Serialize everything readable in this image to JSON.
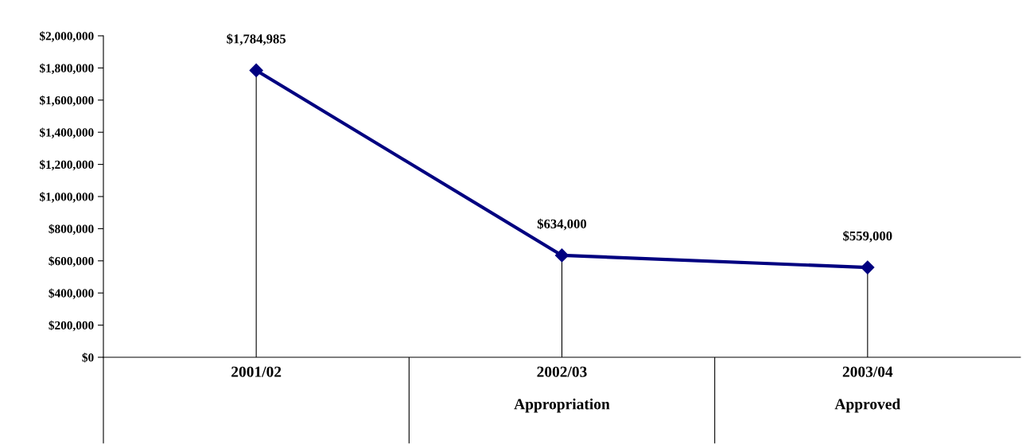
{
  "chart_data": {
    "type": "line",
    "categories": [
      "2001/02",
      "2002/03\n\nAppropriation",
      "2003/04\n\nApproved"
    ],
    "series": [
      {
        "color": "#000080",
        "values": [
          1784985,
          634000,
          559000
        ],
        "value_labels": [
          "$1,784,985",
          "$634,000",
          "$559,000"
        ]
      }
    ],
    "ylim": [
      0,
      2000000
    ],
    "yticks": [
      {
        "value": 0,
        "label": "$0"
      },
      {
        "value": 200000,
        "label": "$200,000"
      },
      {
        "value": 400000,
        "label": "$400,000"
      },
      {
        "value": 600000,
        "label": "$600,000"
      },
      {
        "value": 800000,
        "label": "$800,000"
      },
      {
        "value": 1000000,
        "label": "$1,000,000"
      },
      {
        "value": 1200000,
        "label": "$1,200,000"
      },
      {
        "value": 1400000,
        "label": "$1,400,000"
      },
      {
        "value": 1600000,
        "label": "$1,600,000"
      },
      {
        "value": 1800000,
        "label": "$1,800,000"
      },
      {
        "value": 2000000,
        "label": "$2,000,000"
      }
    ],
    "marker": "diamond",
    "line_style": "solid",
    "grid": false,
    "legend": false
  }
}
